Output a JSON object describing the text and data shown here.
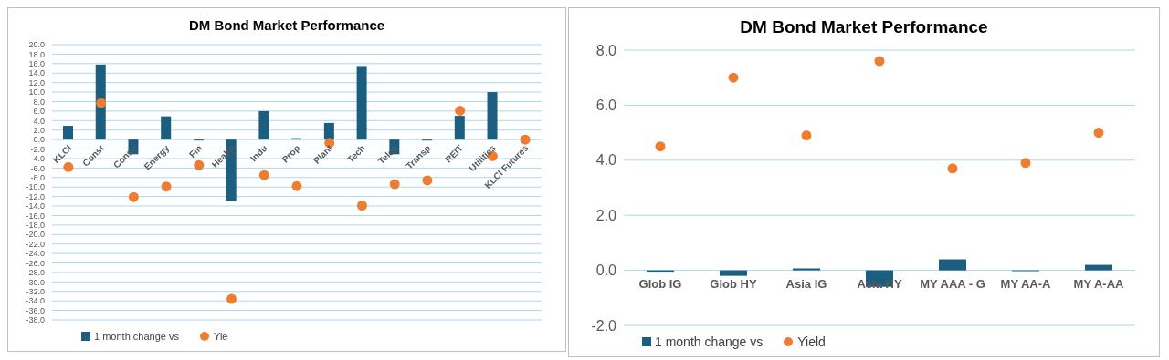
{
  "chart_data": [
    {
      "type": "bar",
      "title": "DM Bond Market Performance",
      "categories": [
        "KLCI",
        "Const",
        "Conso",
        "Energy",
        "Fin",
        "Health",
        "Indu",
        "Prop",
        "Plant",
        "Tech",
        "Telco",
        "Transp",
        "REIT",
        "Utilities",
        "KLCI Futures"
      ],
      "series": [
        {
          "name": "1 month change vs",
          "color": "#1b5e80",
          "values": [
            2.9,
            15.8,
            -3.1,
            4.9,
            -0.2,
            -13.0,
            6.0,
            0.3,
            3.5,
            15.5,
            -3.1,
            -0.2,
            5.0,
            10.0,
            null
          ]
        },
        {
          "name": "Yie",
          "type": "scatter",
          "marker": "circle",
          "color": "#ed7d31",
          "values": [
            -5.8,
            7.7,
            -12.1,
            -9.9,
            -5.4,
            -33.6,
            -7.5,
            -9.8,
            -0.7,
            -13.9,
            -9.4,
            -8.6,
            6.1,
            -3.5,
            0.0
          ]
        }
      ],
      "ylim": [
        -38,
        20
      ],
      "yticks": [
        {
          "value": 20,
          "label": "20.0"
        },
        {
          "value": 18,
          "label": "18.0"
        },
        {
          "value": 16,
          "label": "16.0"
        },
        {
          "value": 14,
          "label": "14.0"
        },
        {
          "value": 12,
          "label": "12.0"
        },
        {
          "value": 10,
          "label": "10.0"
        },
        {
          "value": 8,
          "label": "8.0"
        },
        {
          "value": 6,
          "label": "6.0"
        },
        {
          "value": 4,
          "label": "4.0"
        },
        {
          "value": 2,
          "label": "2.0"
        },
        {
          "value": 0,
          "label": "0.0"
        },
        {
          "value": -2,
          "label": "-2.0"
        },
        {
          "value": -4,
          "label": "-4.0"
        },
        {
          "value": -6,
          "label": "-6.0"
        },
        {
          "value": -8,
          "label": "-8.0"
        },
        {
          "value": -10,
          "label": "-10.0"
        },
        {
          "value": -12,
          "label": "-12.0"
        },
        {
          "value": -14,
          "label": "-14.0"
        },
        {
          "value": -16,
          "label": "-16.0"
        },
        {
          "value": -18,
          "label": "-18.0"
        },
        {
          "value": -20,
          "label": "-20.0"
        },
        {
          "value": -22,
          "label": "-22.0"
        },
        {
          "value": -24,
          "label": "-24.0"
        },
        {
          "value": -26,
          "label": "-26.0"
        },
        {
          "value": -28,
          "label": "-28.0"
        },
        {
          "value": -30,
          "label": "-30.0"
        },
        {
          "value": -32,
          "label": "-32.0"
        },
        {
          "value": -34,
          "label": "-34.0"
        },
        {
          "value": -36,
          "label": "-36.0"
        },
        {
          "value": -38,
          "label": "-38.0"
        }
      ],
      "grid": "y",
      "legend": "bottom left"
    },
    {
      "type": "bar",
      "title": "DM Bond Market Performance",
      "categories": [
        "Glob IG",
        "Glob HY",
        "Asia IG",
        "Asia HY",
        "MY AAA - G",
        "MY AA-A",
        "MY A-AA"
      ],
      "series": [
        {
          "name": "1 month change vs",
          "color": "#1b5e80",
          "values": [
            -0.05,
            -0.2,
            0.07,
            -0.6,
            0.4,
            -0.03,
            0.2
          ]
        },
        {
          "name": "Yield",
          "type": "scatter",
          "marker": "circle",
          "color": "#ed7d31",
          "values": [
            4.5,
            7.0,
            4.9,
            7.6,
            3.7,
            3.9,
            5.0
          ]
        }
      ],
      "ylim": [
        -2,
        8
      ],
      "yticks": [
        {
          "value": -2,
          "label": "-2.0"
        },
        {
          "value": 0,
          "label": "0.0"
        },
        {
          "value": 2,
          "label": "2.0"
        },
        {
          "value": 4,
          "label": "4.0"
        },
        {
          "value": 6,
          "label": "6.0"
        },
        {
          "value": 8,
          "label": "8.0"
        }
      ],
      "grid": "y",
      "legend": "bottom left"
    }
  ]
}
